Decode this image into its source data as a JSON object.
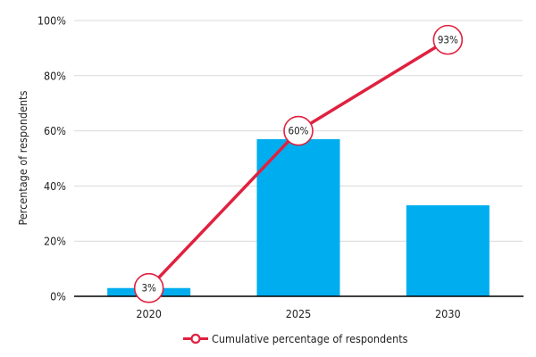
{
  "chart_data": {
    "type": "combo",
    "categories": [
      "2020",
      "2025",
      "2030"
    ],
    "series": [
      {
        "name": "Percentage of respondents",
        "type": "bar",
        "values": [
          3,
          57,
          33
        ],
        "color": "#00AEEF"
      },
      {
        "name": "Cumulative percentage of respondents",
        "type": "line",
        "values": [
          3,
          60,
          93
        ],
        "point_labels": [
          "3%",
          "60%",
          "93%"
        ],
        "color": "#E0213F",
        "marker_fill": "#FFFFFF"
      }
    ],
    "title": "",
    "xlabel": "",
    "ylabel": "Percentage of respondents",
    "ylim": [
      0,
      100
    ],
    "yticks": [
      0,
      20,
      40,
      60,
      80,
      100
    ],
    "ytick_labels": [
      "0%",
      "20%",
      "40%",
      "60%",
      "80%",
      "100%"
    ],
    "grid": true,
    "legend": {
      "position": "bottom-center",
      "entries": [
        {
          "label": "Cumulative percentage of respondents",
          "series": "line"
        }
      ]
    }
  },
  "colors": {
    "background": "#FFFFFF",
    "grid": "#D9D9D9",
    "axis": "#000000",
    "text": "#1F1F1F"
  }
}
